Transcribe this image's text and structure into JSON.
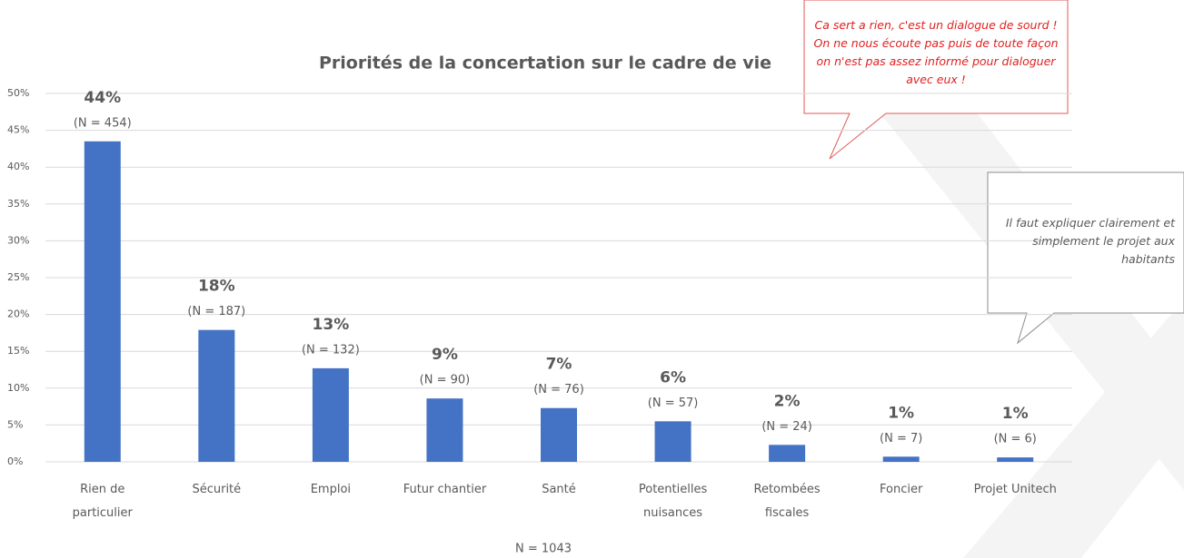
{
  "chart_data": {
    "type": "bar",
    "title": "Priorités de la concertation sur le cadre de vie",
    "categories": [
      "Rien de particulier",
      "Sécurité",
      "Emploi",
      "Futur chantier",
      "Santé",
      "Potentielles nuisances",
      "Retombées fiscales",
      "Foncier",
      "Projet Unitech"
    ],
    "values": [
      43.5,
      17.9,
      12.7,
      8.6,
      7.3,
      5.5,
      2.3,
      0.7,
      0.6
    ],
    "value_labels": [
      "44%",
      "18%",
      "13%",
      "9%",
      "7%",
      "6%",
      "2%",
      "1%",
      "1%"
    ],
    "n_labels": [
      "(N = 454)",
      "(N = 187)",
      "(N = 132)",
      "(N = 90)",
      "(N = 76)",
      "(N = 57)",
      "(N = 24)",
      "(N = 7)",
      "(N = 6)"
    ],
    "color": "#4472c4",
    "ylim": [
      0,
      50
    ],
    "yticks": [
      {
        "value": 0,
        "label": "0%"
      },
      {
        "value": 5,
        "label": "5%"
      },
      {
        "value": 10,
        "label": "10%"
      },
      {
        "value": 15,
        "label": "15%"
      },
      {
        "value": 20,
        "label": "20%"
      },
      {
        "value": 25,
        "label": "25%"
      },
      {
        "value": 30,
        "label": "30%"
      },
      {
        "value": 35,
        "label": "35%"
      },
      {
        "value": 40,
        "label": "40%"
      },
      {
        "value": 45,
        "label": "45%"
      },
      {
        "value": 50,
        "label": "50%"
      }
    ],
    "grid": true,
    "footnote": "N = 1043",
    "callouts": [
      "Ca sert a rien, c'est un dialogue de sourd ! On ne nous écoute pas puis de toute façon on n'est pas assez informé pour dialoguer avec eux !",
      "Il faut expliquer clairement et simplement le projet aux habitants"
    ]
  }
}
